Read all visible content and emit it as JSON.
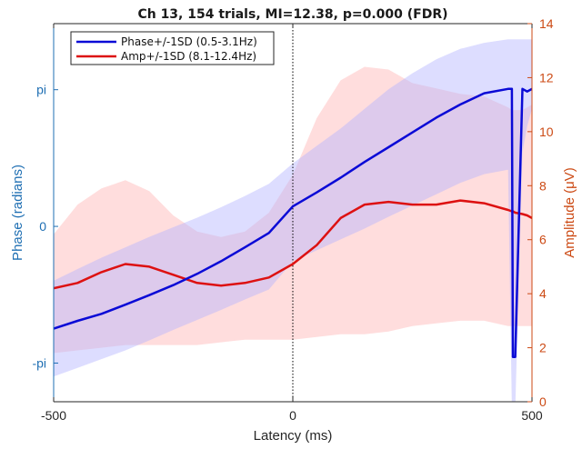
{
  "chart_data": {
    "type": "line",
    "title": "Ch 13, 154 trials, MI=12.38, p=0.000 (FDR)",
    "xlabel": "Latency (ms)",
    "ylabel_left": "Phase (radians)",
    "ylabel_right": "Amplitude (μV)",
    "xlim": [
      -500,
      500
    ],
    "ylim_left": [
      -4.03,
      4.66
    ],
    "ylim_right": [
      0,
      14
    ],
    "x_ticks": [
      -500,
      0,
      500
    ],
    "x_tick_labels": [
      "-500",
      "0",
      "500"
    ],
    "left_ticks": [
      -3.1416,
      0,
      3.1416
    ],
    "left_tick_labels": [
      "-pi",
      "0",
      "pi"
    ],
    "right_ticks": [
      0,
      2,
      4,
      6,
      8,
      10,
      12,
      14
    ],
    "right_tick_labels": [
      "0",
      "2",
      "4",
      "6",
      "8",
      "10",
      "12",
      "14"
    ],
    "zero_line_x": 0,
    "legend_position": "top-left",
    "colors": {
      "phase": "#0a0ad6",
      "amplitude": "#dd1111",
      "phase_band": "#b4b4ff",
      "amp_band": "#ffb4b4",
      "left_axis": "#1f6fb3",
      "right_axis": "#cc4a14"
    },
    "x": [
      -500,
      -450,
      -400,
      -350,
      -300,
      -250,
      -200,
      -150,
      -100,
      -50,
      0,
      50,
      100,
      150,
      200,
      250,
      300,
      350,
      400,
      450,
      458,
      460,
      465,
      480,
      490,
      500
    ],
    "series": [
      {
        "name": "Phase+/-1SD (0.5-3.1Hz)",
        "axis": "left",
        "values": [
          -2.35,
          -2.17,
          -2.01,
          -1.8,
          -1.58,
          -1.35,
          -1.09,
          -0.8,
          -0.48,
          -0.15,
          0.46,
          0.78,
          1.12,
          1.48,
          1.82,
          2.16,
          2.5,
          2.8,
          3.06,
          3.16,
          3.16,
          -3.0,
          -3.0,
          3.16,
          3.1,
          3.16
        ],
        "lower": [
          -3.45,
          -3.25,
          -3.05,
          -2.85,
          -2.62,
          -2.38,
          -2.15,
          -1.92,
          -1.68,
          -1.45,
          -0.8,
          -0.55,
          -0.3,
          -0.05,
          0.22,
          0.48,
          0.74,
          1.0,
          1.2,
          1.3,
          -4.2,
          -4.2,
          -4.2,
          1.7,
          2.3,
          2.7
        ],
        "upper": [
          -1.25,
          -0.98,
          -0.72,
          -0.48,
          -0.24,
          -0.02,
          0.2,
          0.44,
          0.7,
          0.98,
          1.45,
          1.85,
          2.25,
          2.7,
          3.15,
          3.52,
          3.84,
          4.08,
          4.22,
          4.3,
          4.3,
          4.3,
          4.3,
          4.3,
          4.3,
          4.3
        ]
      },
      {
        "name": "Amp+/-1SD (8.1-12.4Hz)",
        "axis": "right",
        "values": [
          4.2,
          4.4,
          4.8,
          5.1,
          5.0,
          4.7,
          4.4,
          4.3,
          4.4,
          4.6,
          5.1,
          5.8,
          6.8,
          7.3,
          7.4,
          7.3,
          7.3,
          7.45,
          7.35,
          7.1,
          7.05,
          7.05,
          7.0,
          6.95,
          6.9,
          6.8
        ],
        "lower": [
          1.8,
          1.9,
          2.0,
          2.1,
          2.1,
          2.1,
          2.1,
          2.2,
          2.3,
          2.3,
          2.3,
          2.4,
          2.5,
          2.5,
          2.6,
          2.8,
          2.9,
          3.0,
          3.0,
          2.8,
          2.8,
          2.8,
          2.8,
          2.8,
          2.8,
          2.8
        ],
        "upper": [
          6.2,
          7.3,
          7.9,
          8.2,
          7.8,
          6.9,
          6.3,
          6.1,
          6.3,
          7.0,
          8.4,
          10.5,
          11.9,
          12.4,
          12.3,
          11.8,
          11.6,
          11.4,
          11.3,
          10.9,
          10.8,
          10.8,
          10.8,
          10.8,
          10.9,
          11.0
        ]
      }
    ]
  }
}
